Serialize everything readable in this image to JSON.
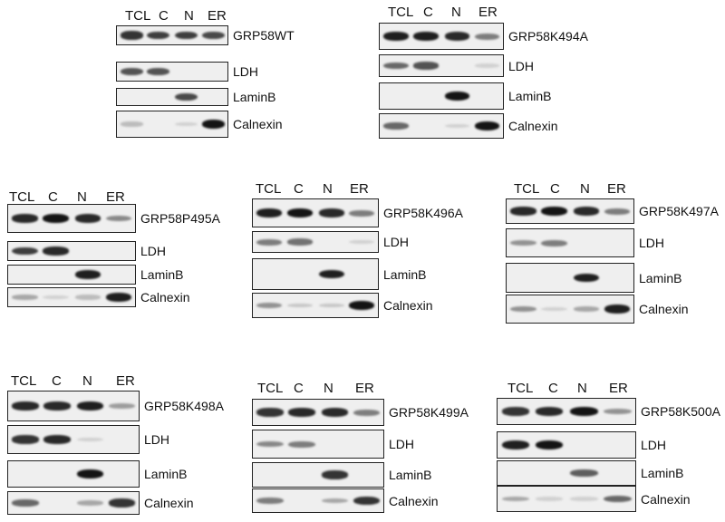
{
  "lanes": [
    "TCL",
    "C",
    "N",
    "ER"
  ],
  "panels": [
    {
      "label": "GRP58WT",
      "rows": [
        {
          "label": "GRP58WT",
          "bands": [
            [
              0,
              0.85
            ],
            [
              1,
              0.8
            ],
            [
              2,
              0.8
            ],
            [
              3,
              0.75
            ]
          ]
        },
        {
          "label": "LDH",
          "bands": [
            [
              0,
              0.7
            ],
            [
              1,
              0.7
            ]
          ]
        },
        {
          "label": "LaminB",
          "bands": [
            [
              2,
              0.75
            ]
          ]
        },
        {
          "label": "Calnexin",
          "bands": [
            [
              0,
              0.2
            ],
            [
              2,
              0.1
            ],
            [
              3,
              1.0
            ]
          ]
        }
      ]
    },
    {
      "label": "GRP58K494A",
      "rows": [
        {
          "label": "GRP58K494A",
          "bands": [
            [
              0,
              0.95
            ],
            [
              1,
              0.95
            ],
            [
              2,
              0.9
            ],
            [
              3,
              0.5
            ]
          ]
        },
        {
          "label": "LDH",
          "bands": [
            [
              0,
              0.6
            ],
            [
              1,
              0.7
            ],
            [
              3,
              0.1
            ]
          ]
        },
        {
          "label": "LaminB",
          "bands": [
            [
              2,
              1.0
            ]
          ]
        },
        {
          "label": "Calnexin",
          "bands": [
            [
              0,
              0.6
            ],
            [
              2,
              0.1
            ],
            [
              3,
              1.0
            ]
          ]
        }
      ]
    },
    {
      "label": "GRP58P495A",
      "rows": [
        {
          "label": "GRP58P495A",
          "bands": [
            [
              0,
              0.9
            ],
            [
              1,
              1.0
            ],
            [
              2,
              0.9
            ],
            [
              3,
              0.45
            ]
          ]
        },
        {
          "label": "LDH",
          "bands": [
            [
              0,
              0.8
            ],
            [
              1,
              0.9
            ]
          ]
        },
        {
          "label": "LaminB",
          "bands": [
            [
              2,
              0.95
            ]
          ]
        },
        {
          "label": "Calnexin",
          "bands": [
            [
              0,
              0.3
            ],
            [
              1,
              0.1
            ],
            [
              2,
              0.2
            ],
            [
              3,
              0.95
            ]
          ]
        }
      ]
    },
    {
      "label": "GRP58K496A",
      "rows": [
        {
          "label": "GRP58K496A",
          "bands": [
            [
              0,
              0.95
            ],
            [
              1,
              1.0
            ],
            [
              2,
              0.9
            ],
            [
              3,
              0.5
            ]
          ]
        },
        {
          "label": "LDH",
          "bands": [
            [
              0,
              0.5
            ],
            [
              1,
              0.55
            ],
            [
              3,
              0.1
            ]
          ]
        },
        {
          "label": "LaminB",
          "bands": [
            [
              2,
              0.95
            ]
          ]
        },
        {
          "label": "Calnexin",
          "bands": [
            [
              0,
              0.4
            ],
            [
              1,
              0.15
            ],
            [
              2,
              0.15
            ],
            [
              3,
              1.0
            ]
          ]
        }
      ]
    },
    {
      "label": "GRP58K497A",
      "rows": [
        {
          "label": "GRP58K497A",
          "bands": [
            [
              0,
              0.9
            ],
            [
              1,
              1.0
            ],
            [
              2,
              0.9
            ],
            [
              3,
              0.5
            ]
          ]
        },
        {
          "label": "LDH",
          "bands": [
            [
              0,
              0.4
            ],
            [
              1,
              0.5
            ]
          ]
        },
        {
          "label": "LaminB",
          "bands": [
            [
              2,
              0.95
            ]
          ]
        },
        {
          "label": "Calnexin",
          "bands": [
            [
              0,
              0.4
            ],
            [
              1,
              0.1
            ],
            [
              2,
              0.3
            ],
            [
              3,
              0.95
            ]
          ]
        }
      ]
    },
    {
      "label": "GRP58K498A",
      "rows": [
        {
          "label": "GRP58K498A",
          "bands": [
            [
              0,
              0.9
            ],
            [
              1,
              0.9
            ],
            [
              2,
              0.95
            ],
            [
              3,
              0.35
            ]
          ]
        },
        {
          "label": "LDH",
          "bands": [
            [
              0,
              0.85
            ],
            [
              1,
              0.9
            ],
            [
              2,
              0.1
            ]
          ]
        },
        {
          "label": "LaminB",
          "bands": [
            [
              2,
              1.0
            ]
          ]
        },
        {
          "label": "Calnexin",
          "bands": [
            [
              0,
              0.6
            ],
            [
              2,
              0.3
            ],
            [
              3,
              0.85
            ]
          ]
        }
      ]
    },
    {
      "label": "GRP58K499A",
      "rows": [
        {
          "label": "GRP58K499A",
          "bands": [
            [
              0,
              0.85
            ],
            [
              1,
              0.9
            ],
            [
              2,
              0.9
            ],
            [
              3,
              0.5
            ]
          ]
        },
        {
          "label": "LDH",
          "bands": [
            [
              0,
              0.45
            ],
            [
              1,
              0.5
            ]
          ]
        },
        {
          "label": "LaminB",
          "bands": [
            [
              2,
              0.85
            ]
          ]
        },
        {
          "label": "Calnexin",
          "bands": [
            [
              0,
              0.5
            ],
            [
              2,
              0.3
            ],
            [
              3,
              0.85
            ]
          ]
        }
      ]
    },
    {
      "label": "GRP58K500A",
      "rows": [
        {
          "label": "GRP58K500A",
          "bands": [
            [
              0,
              0.85
            ],
            [
              1,
              0.9
            ],
            [
              2,
              1.0
            ],
            [
              3,
              0.4
            ]
          ]
        },
        {
          "label": "LDH",
          "bands": [
            [
              0,
              0.95
            ],
            [
              1,
              1.0
            ]
          ]
        },
        {
          "label": "LaminB",
          "bands": [
            [
              2,
              0.65
            ]
          ]
        },
        {
          "label": "Calnexin",
          "bands": [
            [
              0,
              0.3
            ],
            [
              1,
              0.1
            ],
            [
              2,
              0.1
            ],
            [
              3,
              0.6
            ]
          ]
        }
      ]
    }
  ]
}
